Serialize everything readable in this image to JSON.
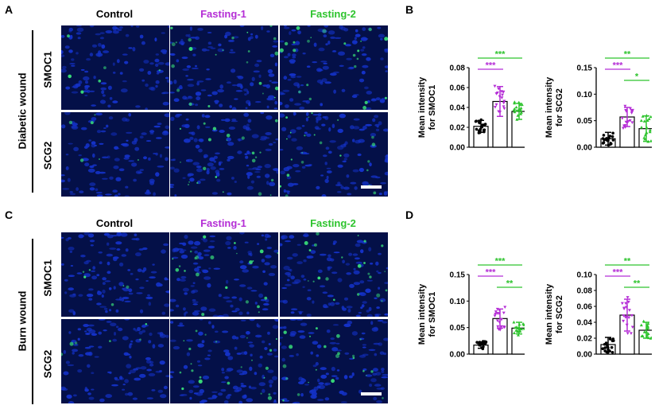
{
  "colors": {
    "control": "#000000",
    "fasting1": "#b52ed6",
    "fasting2": "#2fc42f",
    "nucleus": "#1432c8",
    "stain": "#39e07a"
  },
  "panels": {
    "A": {
      "letter": "A",
      "group": "Diabetic wound",
      "rows": [
        "SMOC1",
        "SCG2"
      ]
    },
    "B": {
      "letter": "B"
    },
    "C": {
      "letter": "C",
      "group": "Burn wound",
      "rows": [
        "SMOC1",
        "SCG2"
      ]
    },
    "D": {
      "letter": "D"
    }
  },
  "columns": {
    "control": "Control",
    "fasting1": "Fasting-1",
    "fasting2": "Fasting-2"
  },
  "chart_data": [
    {
      "id": "B1",
      "type": "bar",
      "ylabel": [
        "Mean intensity",
        "for SMOC1"
      ],
      "categories": [
        "Control",
        "Fasting-1",
        "Fasting-2"
      ],
      "values": [
        0.021,
        0.046,
        0.036
      ],
      "errors": [
        0.006,
        0.015,
        0.008
      ],
      "ylim": [
        0,
        0.08
      ],
      "ticks": [
        "0.00",
        "0.02",
        "0.04",
        "0.06",
        "0.08"
      ],
      "tickvals": [
        0,
        0.02,
        0.04,
        0.06,
        0.08
      ],
      "sig": [
        {
          "from": 0,
          "to": 2,
          "label": "***",
          "color": "fasting2"
        },
        {
          "from": 0,
          "to": 1,
          "label": "***",
          "color": "fasting1"
        }
      ]
    },
    {
      "id": "B2",
      "type": "bar",
      "ylabel": [
        "Mean intensity",
        "for SCG2"
      ],
      "categories": [
        "Control",
        "Fasting-1",
        "Fasting-2"
      ],
      "values": [
        0.016,
        0.057,
        0.035
      ],
      "errors": [
        0.012,
        0.018,
        0.024
      ],
      "ylim": [
        0,
        0.15
      ],
      "ticks": [
        "0.00",
        "0.05",
        "0.10",
        "0.15"
      ],
      "tickvals": [
        0,
        0.05,
        0.1,
        0.15
      ],
      "sig": [
        {
          "from": 0,
          "to": 2,
          "label": "**",
          "color": "fasting2"
        },
        {
          "from": 0,
          "to": 1,
          "label": "***",
          "color": "fasting1"
        },
        {
          "from": 1,
          "to": 2,
          "label": "*",
          "color": "fasting2"
        }
      ]
    },
    {
      "id": "D1",
      "type": "bar",
      "ylabel": [
        "Mean intensity",
        "for SMOC1"
      ],
      "categories": [
        "Control",
        "Fasting-1",
        "Fasting-2"
      ],
      "values": [
        0.017,
        0.067,
        0.049
      ],
      "errors": [
        0.006,
        0.018,
        0.011
      ],
      "ylim": [
        0,
        0.15
      ],
      "ticks": [
        "0.00",
        "0.05",
        "0.10",
        "0.15"
      ],
      "tickvals": [
        0,
        0.05,
        0.1,
        0.15
      ],
      "sig": [
        {
          "from": 0,
          "to": 2,
          "label": "***",
          "color": "fasting2"
        },
        {
          "from": 0,
          "to": 1,
          "label": "***",
          "color": "fasting1"
        },
        {
          "from": 1,
          "to": 2,
          "label": "**",
          "color": "fasting2"
        }
      ]
    },
    {
      "id": "D2",
      "type": "bar",
      "ylabel": [
        "Mean intensity",
        "for SCG2"
      ],
      "categories": [
        "Control",
        "Fasting-1",
        "Fasting-2"
      ],
      "values": [
        0.012,
        0.049,
        0.03
      ],
      "errors": [
        0.009,
        0.02,
        0.01
      ],
      "ylim": [
        0,
        0.1
      ],
      "ticks": [
        "0.00",
        "0.02",
        "0.04",
        "0.06",
        "0.08",
        "0.10"
      ],
      "tickvals": [
        0,
        0.02,
        0.04,
        0.06,
        0.08,
        0.1
      ],
      "sig": [
        {
          "from": 0,
          "to": 2,
          "label": "**",
          "color": "fasting2"
        },
        {
          "from": 0,
          "to": 1,
          "label": "***",
          "color": "fasting1"
        },
        {
          "from": 1,
          "to": 2,
          "label": "**",
          "color": "fasting2"
        }
      ]
    }
  ]
}
